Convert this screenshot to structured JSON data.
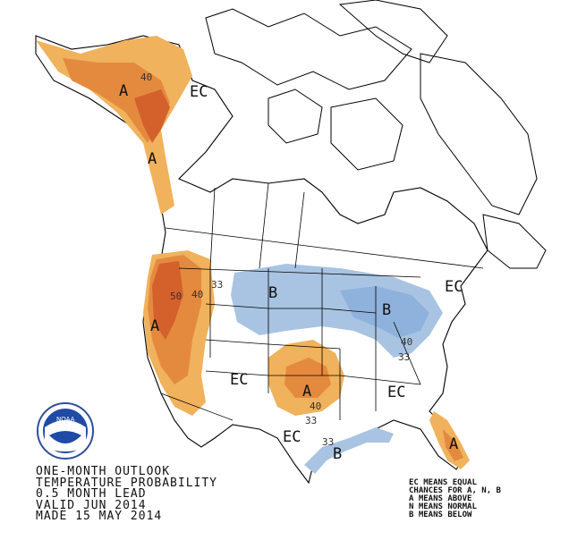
{
  "map": {
    "outlook_text": [
      "ONE-MONTH OUTLOOK",
      "TEMPERATURE PROBABILITY",
      "0.5 MONTH LEAD",
      "VALID JUN 2014",
      "MADE 15 MAY 2014"
    ],
    "legend_text": [
      "EC MEANS EQUAL",
      "CHANCES FOR A, N, B",
      "A MEANS ABOVE",
      "N MEANS NORMAL",
      "B MEANS BELOW"
    ],
    "logo_text": "NOAA",
    "region_labels": {
      "alaska_a": "A",
      "alaska_40": "40",
      "alaska_ec": "EC",
      "panhandle_a": "A",
      "west_a": "A",
      "west_50": "50",
      "west_40": "40",
      "west_33": "33",
      "north_b": "B",
      "greatlakes_b": "B",
      "gl_40": "40",
      "gl_33": "33",
      "ne_ec": "EC",
      "central_ec": "EC",
      "se_ec": "EC",
      "plains_a": "A",
      "plains_40": "40",
      "plains_33": "33",
      "south_ec": "EC",
      "gulf_b": "B",
      "gulf_33": "33",
      "florida_a": "A"
    },
    "colors": {
      "above_33": "#f0b25c",
      "above_40": "#e48a3e",
      "above_50": "#d4602c",
      "below_33": "#a8c4e2",
      "below_40": "#8fb2dc",
      "land_outline": "#000000",
      "background": "#ffffff"
    }
  }
}
